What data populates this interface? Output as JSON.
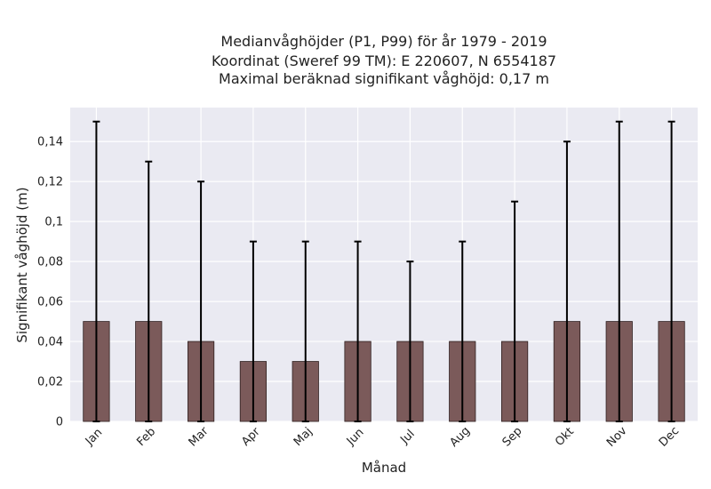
{
  "chart_data": {
    "type": "bar",
    "title_lines": [
      "Medianvåghöjder (P1, P99) för år 1979 - 2019",
      "Koordinat (Sweref 99 TM): E 220607, N 6554187",
      "Maximal beräknad signifikant våghöjd: 0,17 m"
    ],
    "xlabel": "Månad",
    "ylabel": "Signifikant våghöjd (m)",
    "categories": [
      "Jan",
      "Feb",
      "Mar",
      "Apr",
      "Maj",
      "Jun",
      "Jul",
      "Aug",
      "Sep",
      "Okt",
      "Nov",
      "Dec"
    ],
    "values": [
      0.05,
      0.05,
      0.04,
      0.03,
      0.03,
      0.04,
      0.04,
      0.04,
      0.04,
      0.05,
      0.05,
      0.05
    ],
    "p1": [
      0,
      0,
      0,
      0,
      0,
      0,
      0,
      0,
      0,
      0,
      0,
      0
    ],
    "p99": [
      0.15,
      0.13,
      0.12,
      0.09,
      0.09,
      0.09,
      0.08,
      0.09,
      0.11,
      0.14,
      0.15,
      0.15
    ],
    "yticks": [
      0,
      0.02,
      0.04,
      0.06,
      0.08,
      0.1,
      0.12,
      0.14
    ],
    "ytick_labels": [
      "0",
      "0,02",
      "0,04",
      "0,06",
      "0,08",
      "0,1",
      "0,12",
      "0,14"
    ],
    "ylim": [
      0,
      0.157
    ],
    "grid": true,
    "colors": {
      "bar": "#7b5a5a",
      "bar_edge": "#2e1f1f",
      "plot_background": "#eaeaf2",
      "grid": "#ffffff",
      "error_bar": "#000000"
    }
  }
}
